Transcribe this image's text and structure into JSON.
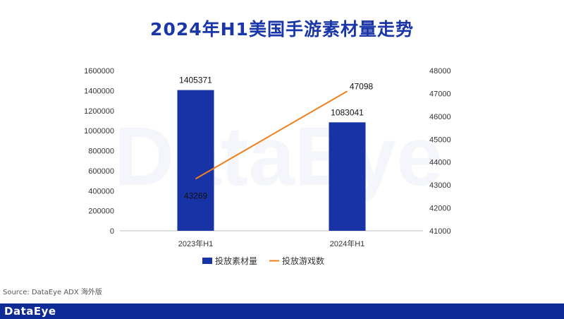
{
  "title": "2024年H1美国手游素材量走势",
  "watermark": "DataEye",
  "source": "Source: DataEye ADX 海外版",
  "footer_logo": "DataEye",
  "colors": {
    "bar": "#1733a6",
    "line": "#f07f1d",
    "title": "#1a36a8",
    "footer": "#0e2a94"
  },
  "chart_data": {
    "type": "bar",
    "categories": [
      "2023年H1",
      "2024年H1"
    ],
    "series": [
      {
        "name": "投放素材量",
        "type": "bar",
        "axis": "left",
        "values": [
          1405371,
          1083041
        ]
      },
      {
        "name": "投放游戏数",
        "type": "line",
        "axis": "right",
        "values": [
          43269,
          47098
        ]
      }
    ],
    "y_left": {
      "min": 0,
      "max": 1600000,
      "ticks": [
        0,
        200000,
        400000,
        600000,
        800000,
        1000000,
        1200000,
        1400000,
        1600000
      ]
    },
    "y_right": {
      "min": 41000,
      "max": 48000,
      "ticks": [
        41000,
        42000,
        43000,
        44000,
        45000,
        46000,
        47000,
        48000
      ]
    },
    "legend_position": "bottom",
    "grid": false
  }
}
